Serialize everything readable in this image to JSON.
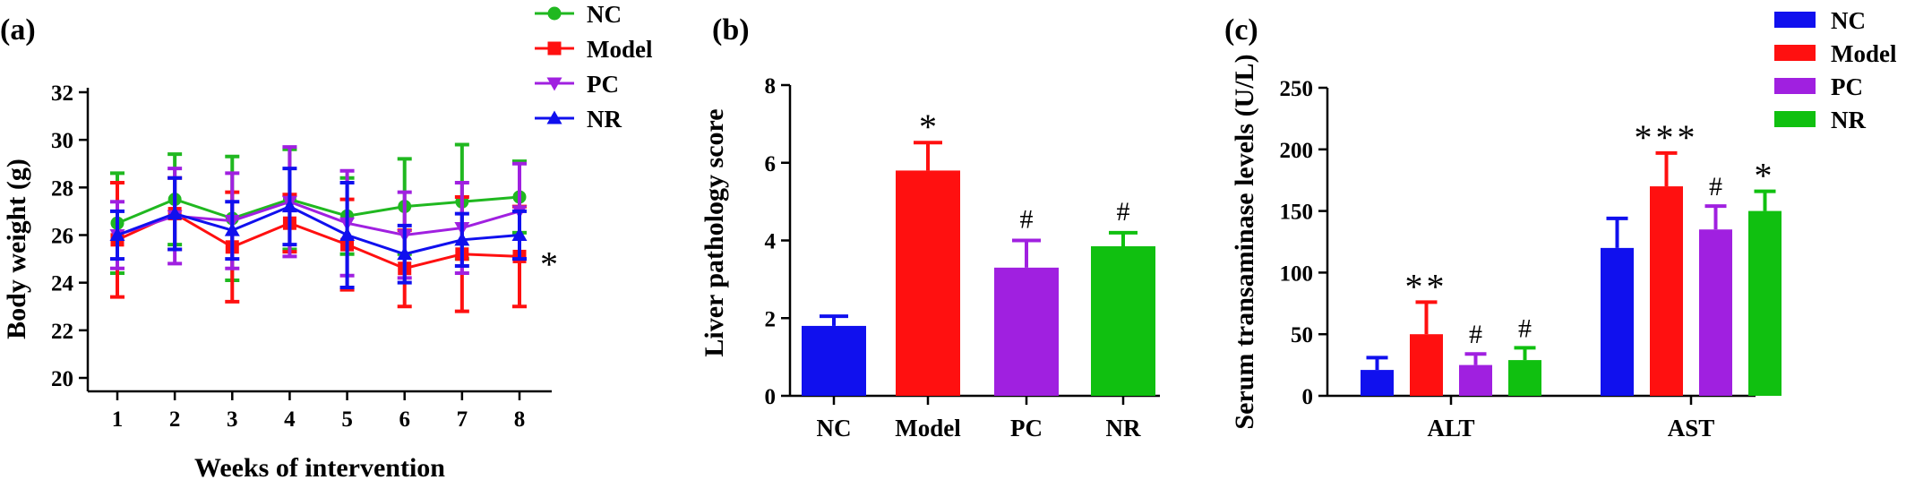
{
  "chart_data": [
    {
      "type": "line",
      "panel_label": "(a)",
      "xlabel": "Weeks of intervention",
      "ylabel": "Body weight (g)",
      "x": [
        1,
        2,
        3,
        4,
        5,
        6,
        7,
        8
      ],
      "ylim": [
        20,
        32
      ],
      "yticks": [
        20,
        22,
        24,
        26,
        28,
        30,
        32
      ],
      "legend_position": "top-right",
      "series": [
        {
          "name": "NC",
          "color": "#20b820",
          "marker": "circle",
          "values": [
            26.5,
            27.5,
            26.7,
            27.5,
            26.8,
            27.2,
            27.4,
            27.6
          ],
          "errors": [
            2.1,
            1.9,
            2.6,
            2.1,
            1.6,
            2.0,
            2.4,
            1.5
          ]
        },
        {
          "name": "Model",
          "color": "#ff1010",
          "marker": "square",
          "values": [
            25.8,
            26.9,
            25.5,
            26.5,
            25.6,
            24.6,
            25.2,
            25.1
          ],
          "errors": [
            2.4,
            1.5,
            2.3,
            1.2,
            1.9,
            1.6,
            2.4,
            2.1
          ]
        },
        {
          "name": "PC",
          "color": "#a020e0",
          "marker": "triangle-down",
          "values": [
            26.0,
            26.8,
            26.6,
            27.4,
            26.5,
            26.0,
            26.3,
            27.0
          ],
          "errors": [
            1.4,
            2.0,
            2.0,
            2.3,
            2.2,
            1.8,
            1.9,
            2.0
          ]
        },
        {
          "name": "NR",
          "color": "#1010ee",
          "marker": "triangle-up",
          "values": [
            26.0,
            26.9,
            26.2,
            27.2,
            26.0,
            25.2,
            25.8,
            26.0
          ],
          "errors": [
            1.0,
            1.5,
            1.2,
            1.6,
            2.2,
            1.2,
            1.1,
            1.0
          ]
        }
      ],
      "annotations": [
        {
          "text": "*",
          "x": 8,
          "series": "Model"
        }
      ]
    },
    {
      "type": "bar",
      "panel_label": "(b)",
      "ylabel": "Liver pathology score",
      "categories": [
        "NC",
        "Model",
        "PC",
        "NR"
      ],
      "values": [
        1.8,
        5.8,
        3.3,
        3.85
      ],
      "errors": [
        0.25,
        0.72,
        0.7,
        0.35
      ],
      "colors": [
        "#1010ee",
        "#ff1010",
        "#a020e0",
        "#10c010"
      ],
      "significance": [
        "",
        "*",
        "#",
        "#"
      ],
      "ylim": [
        0,
        8
      ],
      "yticks": [
        0,
        2,
        4,
        6,
        8
      ]
    },
    {
      "type": "bar",
      "panel_label": "(c)",
      "ylabel": "Serum transaminase levels (U/L)",
      "categories": [
        "ALT",
        "AST"
      ],
      "ylim": [
        0,
        250
      ],
      "yticks": [
        0,
        50,
        100,
        150,
        200,
        250
      ],
      "legend_position": "top-right",
      "series": [
        {
          "name": "NC",
          "color": "#1010ee",
          "values": [
            21,
            120
          ],
          "errors": [
            10,
            24
          ],
          "significance": [
            "",
            ""
          ]
        },
        {
          "name": "Model",
          "color": "#ff1010",
          "values": [
            50,
            170
          ],
          "errors": [
            26,
            27
          ],
          "significance": [
            "**",
            "***"
          ]
        },
        {
          "name": "PC",
          "color": "#a020e0",
          "values": [
            25,
            135
          ],
          "errors": [
            9,
            19
          ],
          "significance": [
            "#",
            "#"
          ]
        },
        {
          "name": "NR",
          "color": "#10c010",
          "values": [
            29,
            150
          ],
          "errors": [
            10,
            16
          ],
          "significance": [
            "#",
            "*"
          ]
        }
      ]
    }
  ]
}
